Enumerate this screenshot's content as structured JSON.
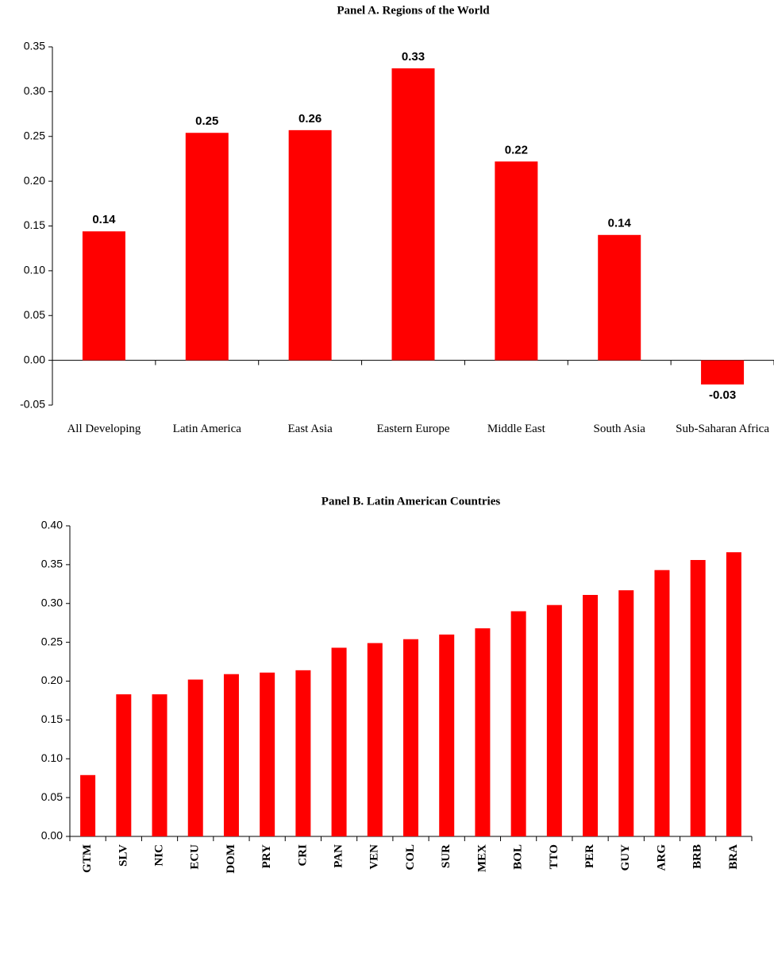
{
  "chart_data": [
    {
      "type": "bar",
      "title": "Panel A. Regions of the World",
      "categories": [
        "All Developing",
        "Latin America",
        "East Asia",
        "Eastern Europe",
        "Middle East",
        "South Asia",
        "Sub-Saharan Africa"
      ],
      "values": [
        0.144,
        0.254,
        0.257,
        0.326,
        0.222,
        0.14,
        -0.027
      ],
      "value_labels": [
        "0.14",
        "0.25",
        "0.26",
        "0.33",
        "0.22",
        "0.14",
        "-0.03"
      ],
      "color": "#ff0000",
      "ylim": [
        -0.05,
        0.35
      ],
      "yticks": [
        {
          "value": -0.05,
          "label": "-0.05"
        },
        {
          "value": 0,
          "label": "0.00"
        },
        {
          "value": 0.05,
          "label": "0.05"
        },
        {
          "value": 0.1,
          "label": "0.10"
        },
        {
          "value": 0.15,
          "label": "0.15"
        },
        {
          "value": 0.2,
          "label": "0.20"
        },
        {
          "value": 0.25,
          "label": "0.25"
        },
        {
          "value": 0.3,
          "label": "0.30"
        },
        {
          "value": 0.35,
          "label": "0.35"
        }
      ],
      "grid": false
    },
    {
      "type": "bar",
      "title": "Panel B. Latin American Countries",
      "categories": [
        "GTM",
        "SLV",
        "NIC",
        "ECU",
        "DOM",
        "PRY",
        "CRI",
        "PAN",
        "VEN",
        "COL",
        "SUR",
        "MEX",
        "BOL",
        "TTO",
        "PER",
        "GUY",
        "ARG",
        "BRB",
        "BRA"
      ],
      "values": [
        0.079,
        0.183,
        0.183,
        0.202,
        0.209,
        0.211,
        0.214,
        0.243,
        0.249,
        0.254,
        0.26,
        0.268,
        0.29,
        0.298,
        0.311,
        0.317,
        0.343,
        0.356,
        0.366
      ],
      "color": "#ff0000",
      "ylim": [
        0,
        0.4
      ],
      "yticks": [
        {
          "value": 0,
          "label": "0.00"
        },
        {
          "value": 0.05,
          "label": "0.05"
        },
        {
          "value": 0.1,
          "label": "0.10"
        },
        {
          "value": 0.15,
          "label": "0.15"
        },
        {
          "value": 0.2,
          "label": "0.20"
        },
        {
          "value": 0.25,
          "label": "0.25"
        },
        {
          "value": 0.3,
          "label": "0.30"
        },
        {
          "value": 0.35,
          "label": "0.35"
        },
        {
          "value": 0.4,
          "label": "0.40"
        }
      ],
      "grid": false
    }
  ]
}
